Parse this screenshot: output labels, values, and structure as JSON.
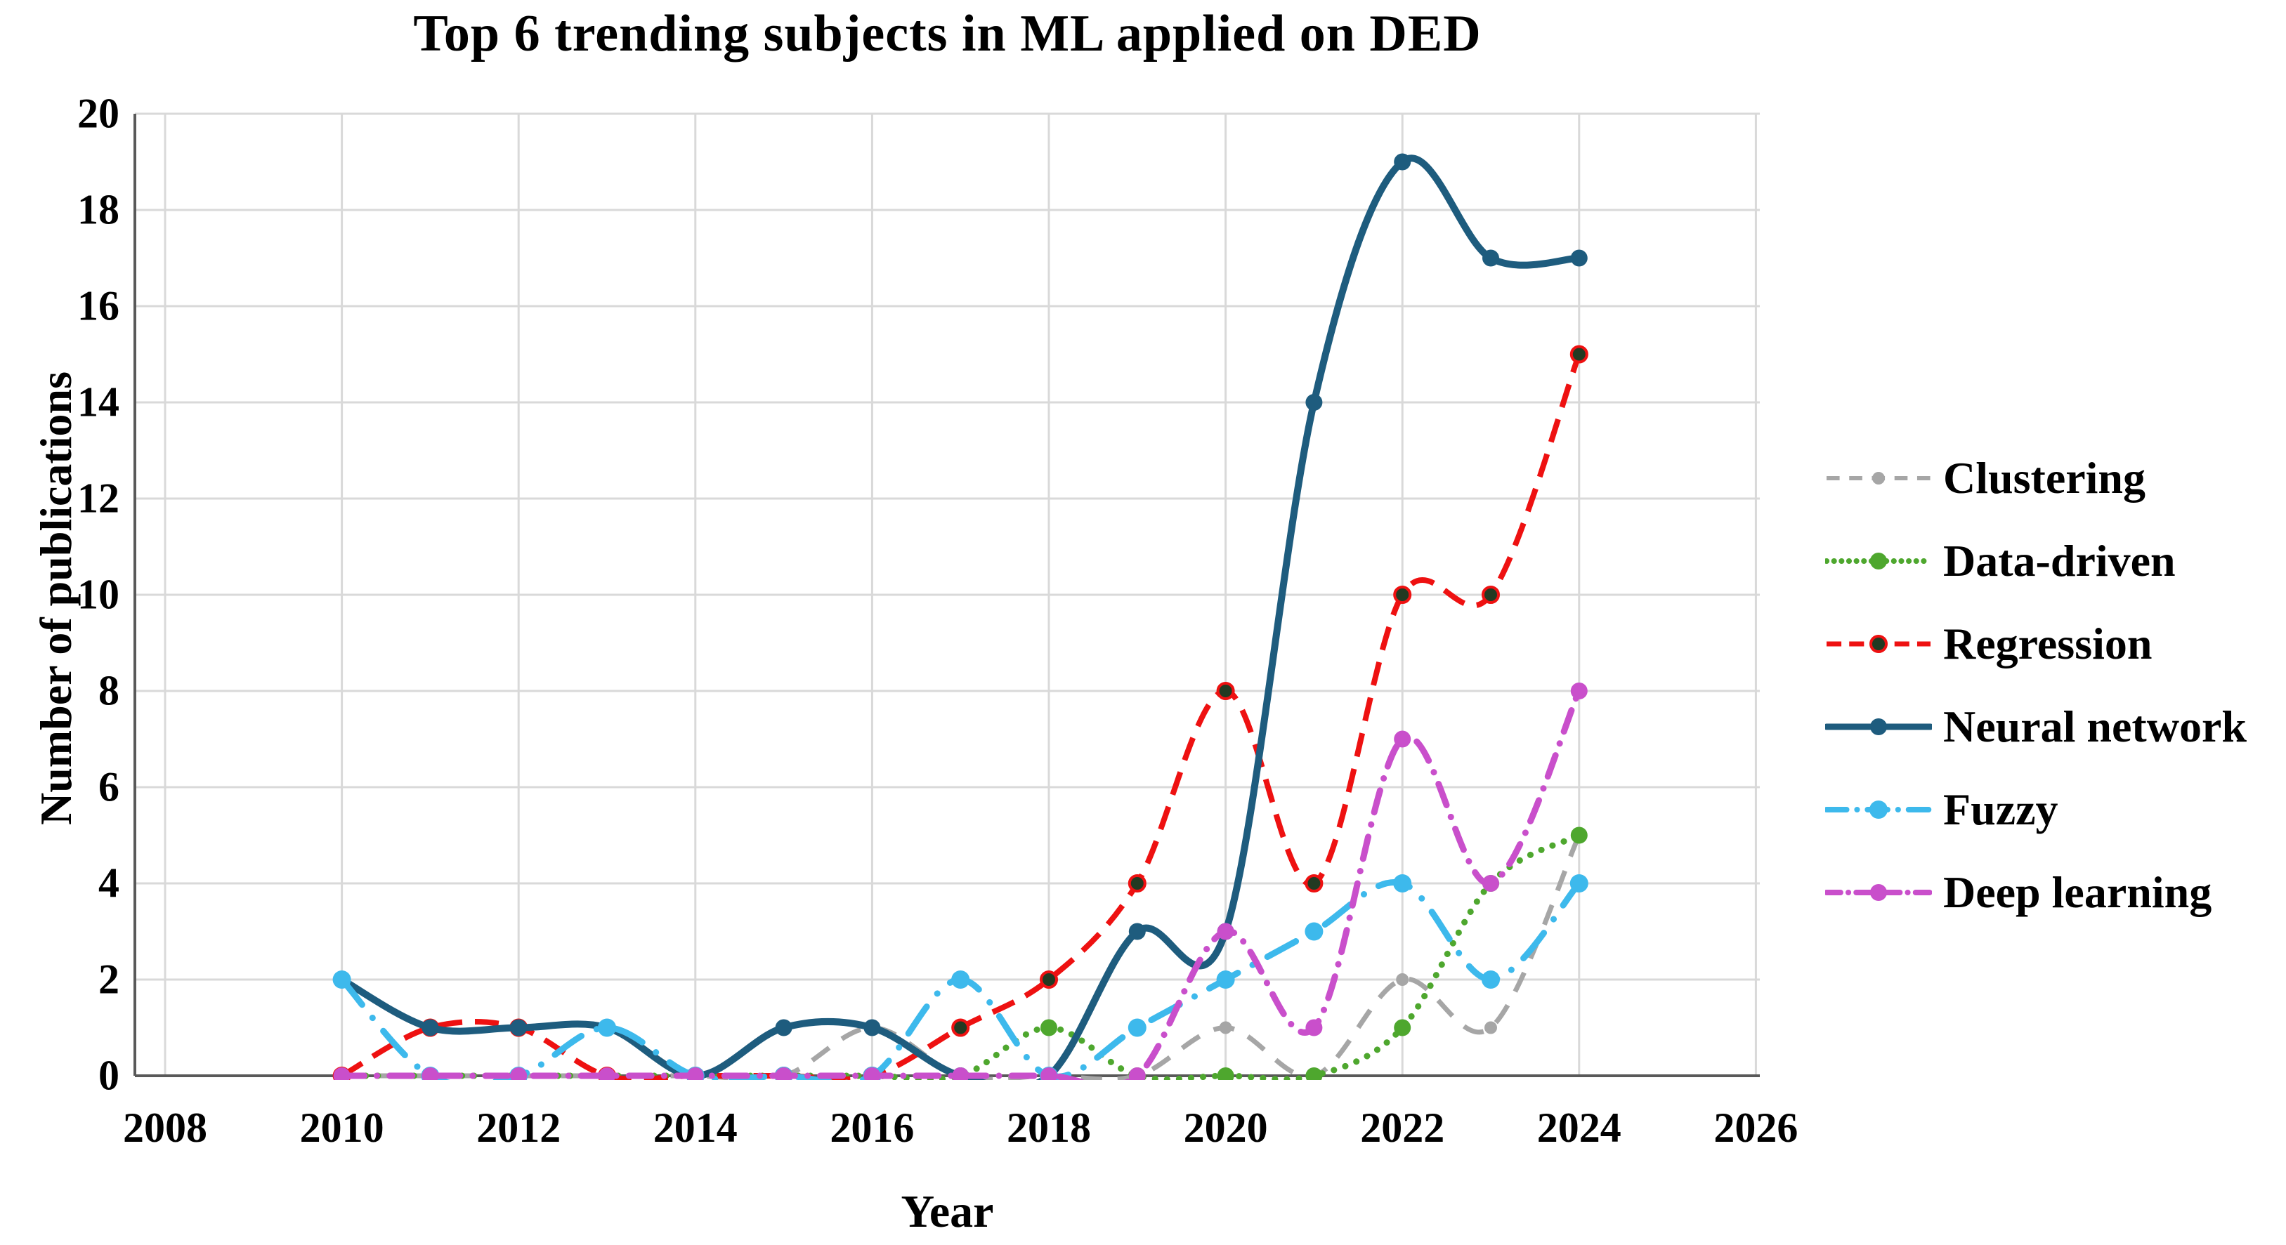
{
  "title": "Top 6 trending subjects in ML applied on DED",
  "axes": {
    "x_label": "Year",
    "y_label": "Number of publications",
    "x_ticks": [
      2008,
      2010,
      2012,
      2014,
      2016,
      2018,
      2020,
      2022,
      2024,
      2026
    ],
    "y_ticks": [
      0,
      2,
      4,
      6,
      8,
      10,
      12,
      14,
      16,
      18,
      20
    ]
  },
  "colors": {
    "grid": "#d9d9d9",
    "axis_line": "#595959",
    "background": "#ffffff",
    "regression_marker_fill": "#223a22"
  },
  "chart_data": {
    "type": "line",
    "title": "Top 6 trending subjects in ML applied on DED",
    "xlabel": "Year",
    "ylabel": "Number of publications",
    "xlim": [
      2008,
      2026
    ],
    "ylim": [
      0,
      20
    ],
    "grid": "on",
    "legend_position": "right",
    "smoothing": "spline",
    "x": [
      2010,
      2011,
      2012,
      2013,
      2014,
      2015,
      2016,
      2017,
      2018,
      2019,
      2020,
      2021,
      2022,
      2023,
      2024
    ],
    "series": [
      {
        "name": "Clustering",
        "color": "#a6a6a6",
        "style": "dash",
        "marker": "circle",
        "values": [
          0,
          0,
          0,
          0,
          0,
          0,
          1,
          0,
          0,
          0,
          1,
          0,
          2,
          1,
          5
        ]
      },
      {
        "name": "Data-driven",
        "color": "#4ea72e",
        "style": "dot",
        "marker": "circle",
        "values": [
          0,
          0,
          0,
          0,
          0,
          0,
          0,
          0,
          1,
          0,
          0,
          0,
          1,
          4,
          5
        ]
      },
      {
        "name": "Regression",
        "color": "#ee1111",
        "style": "dash",
        "marker": "circle-dark",
        "values": [
          0,
          1,
          1,
          0,
          0,
          0,
          0,
          1,
          2,
          4,
          8,
          4,
          10,
          10,
          15
        ]
      },
      {
        "name": "Neural network",
        "color": "#1e5c7e",
        "style": "solid",
        "marker": "circle",
        "values": [
          2,
          1,
          1,
          1,
          0,
          1,
          1,
          0,
          0,
          3,
          3,
          14,
          19,
          17,
          17
        ]
      },
      {
        "name": "Fuzzy",
        "color": "#3db9ec",
        "style": "dashdot",
        "marker": "circle",
        "values": [
          2,
          0,
          0,
          1,
          0,
          0,
          0,
          2,
          0,
          1,
          2,
          3,
          4,
          2,
          4
        ]
      },
      {
        "name": "Deep learning",
        "color": "#c94fcb",
        "style": "dashdot",
        "marker": "circle",
        "values": [
          0,
          0,
          0,
          0,
          0,
          0,
          0,
          0,
          0,
          0,
          3,
          1,
          7,
          4,
          8
        ]
      }
    ]
  }
}
